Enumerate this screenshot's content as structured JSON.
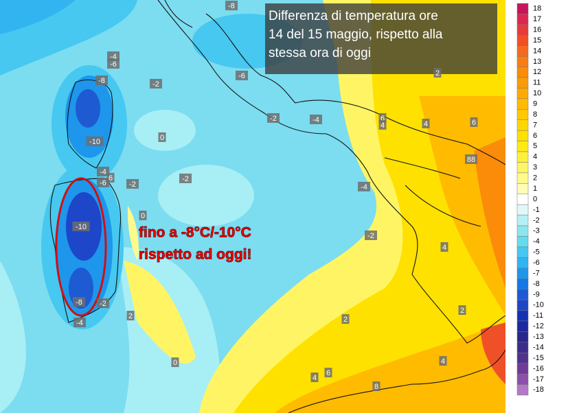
{
  "title": [
    "Differenza di temperatura ore",
    "14 del 15 maggio, rispetto alla",
    "stessa ora di oggi"
  ],
  "annotation": [
    "fino a -8°C/-10°C",
    "rispetto ad oggi!"
  ],
  "legend": {
    "labels": [
      "18",
      "17",
      "16",
      "15",
      "14",
      "13",
      "12",
      "11",
      "10",
      "9",
      "8",
      "7",
      "6",
      "5",
      "4",
      "3",
      "2",
      "1",
      "0",
      "-1",
      "-2",
      "-3",
      "-4",
      "-5",
      "-6",
      "-7",
      "-8",
      "-9",
      "-10",
      "-11",
      "-12",
      "-13",
      "-14",
      "-15",
      "-16",
      "-17",
      "-18"
    ],
    "colors": [
      "#c8145a",
      "#dc2850",
      "#e63c3c",
      "#f05028",
      "#f56a1e",
      "#fa7d14",
      "#fa8c0a",
      "#fa9b0a",
      "#ffaa00",
      "#ffbb00",
      "#ffc800",
      "#ffd700",
      "#ffe100",
      "#ffeb14",
      "#fff03c",
      "#fff564",
      "#fffa8c",
      "#fffcb4",
      "#ffffff",
      "#e0f8f8",
      "#b4f0f5",
      "#8ce6f0",
      "#64dcf0",
      "#46c8f0",
      "#32b4f0",
      "#1e96eb",
      "#1478e6",
      "#1e5ad2",
      "#1e46c8",
      "#1432b4",
      "#1e28a0",
      "#28288c",
      "#3c2d8c",
      "#50328c",
      "#6e3c96",
      "#8c50aa",
      "#b478c8"
    ]
  },
  "map_labels": [
    "-8",
    "-4",
    "-6",
    "-6",
    "-2",
    "-8",
    "-2",
    "-4",
    "6",
    "4",
    "4",
    "6",
    "2",
    "0",
    "-10",
    "88",
    "-4",
    "-6",
    "6",
    "-2",
    "-2",
    "-4",
    "0",
    "-10",
    "-2",
    "4",
    "-8",
    "-2",
    "2",
    "2",
    "-4",
    "2",
    "0",
    "4",
    "4",
    "6",
    "8"
  ]
}
